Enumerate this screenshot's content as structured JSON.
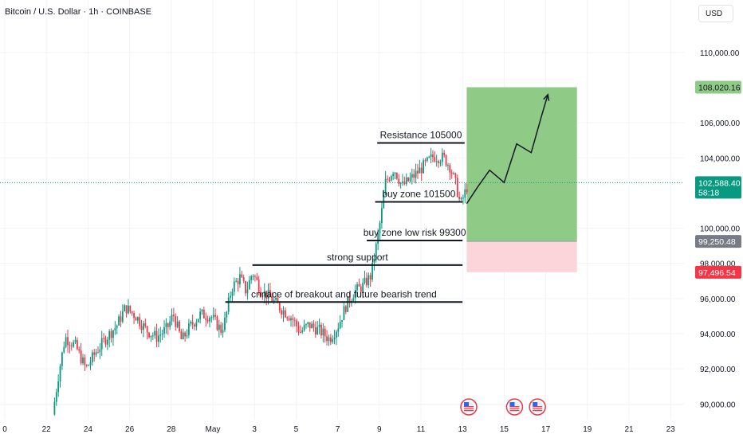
{
  "header": {
    "title": "Bitcoin / U.S. Dollar · 1h · COINBASE",
    "currency_button": "USD"
  },
  "colors": {
    "up": "#089981",
    "down": "#f23645",
    "target_zone": "#8fcb86",
    "stop_zone": "#fbd5d9",
    "grid": "#f0f3fa",
    "axis_text": "#131722"
  },
  "icons": [
    "us-flag-event-icon",
    "us-flag-event-icon",
    "us-flag-event-icon"
  ],
  "chart_data": {
    "type": "candlestick",
    "title": "Bitcoin / U.S. Dollar · 1h · COINBASE",
    "ylim": [
      89200,
      112800
    ],
    "y_ticks": [
      90000,
      92000,
      94000,
      96000,
      98000,
      100000,
      104000,
      106000,
      110000
    ],
    "y_tick_labels": [
      "90,000.00",
      "92,000.00",
      "94,000.00",
      "96,000.00",
      "98,000.00",
      "100,000.00",
      "104,000.00",
      "106,000.00",
      "110,000.00"
    ],
    "x_ticks": [
      {
        "day": 20,
        "label": "0"
      },
      {
        "day": 22,
        "label": "22"
      },
      {
        "day": 24,
        "label": "24"
      },
      {
        "day": 26,
        "label": "26"
      },
      {
        "day": 28,
        "label": "28"
      },
      {
        "day": 30,
        "label": "May"
      },
      {
        "day": 32,
        "label": "3"
      },
      {
        "day": 34,
        "label": "5"
      },
      {
        "day": 36,
        "label": "7"
      },
      {
        "day": 38,
        "label": "9"
      },
      {
        "day": 40,
        "label": "11"
      },
      {
        "day": 42,
        "label": "13"
      },
      {
        "day": 44,
        "label": "15"
      },
      {
        "day": 46,
        "label": "17"
      },
      {
        "day": 48,
        "label": "19"
      },
      {
        "day": 50,
        "label": "21"
      },
      {
        "day": 52,
        "label": "23"
      }
    ],
    "price_path": [
      [
        22.3,
        89400
      ],
      [
        22.6,
        91800
      ],
      [
        22.9,
        93800
      ],
      [
        23.4,
        93300
      ],
      [
        23.9,
        92000
      ],
      [
        24.4,
        93000
      ],
      [
        24.9,
        93800
      ],
      [
        25.4,
        94500
      ],
      [
        25.8,
        95500
      ],
      [
        26.3,
        95000
      ],
      [
        26.8,
        94200
      ],
      [
        27.3,
        93800
      ],
      [
        27.8,
        94300
      ],
      [
        28.1,
        95100
      ],
      [
        28.5,
        93600
      ],
      [
        28.9,
        94400
      ],
      [
        29.4,
        95100
      ],
      [
        29.9,
        95000
      ],
      [
        30.4,
        94200
      ],
      [
        30.6,
        94800
      ],
      [
        30.9,
        96600
      ],
      [
        31.3,
        97200
      ],
      [
        31.6,
        96400
      ],
      [
        31.9,
        97500
      ],
      [
        32.3,
        96500
      ],
      [
        32.8,
        96000
      ],
      [
        33.3,
        95400
      ],
      [
        33.8,
        94900
      ],
      [
        34.2,
        94100
      ],
      [
        34.6,
        94500
      ],
      [
        35.1,
        94200
      ],
      [
        35.6,
        93700
      ],
      [
        36.0,
        94400
      ],
      [
        36.4,
        95600
      ],
      [
        36.8,
        96400
      ],
      [
        37.2,
        96700
      ],
      [
        37.6,
        97300
      ],
      [
        37.9,
        99300
      ],
      [
        38.1,
        100800
      ],
      [
        38.3,
        102600
      ],
      [
        38.7,
        103400
      ],
      [
        39.1,
        102400
      ],
      [
        39.6,
        102900
      ],
      [
        40.1,
        103500
      ],
      [
        40.6,
        104100
      ],
      [
        41.1,
        104000
      ],
      [
        41.4,
        103500
      ],
      [
        41.7,
        102400
      ],
      [
        41.9,
        101300
      ],
      [
        42.2,
        102300
      ],
      [
        42.3,
        102588
      ]
    ],
    "annotations": [
      {
        "text": "Resistance 105000",
        "y": 104850,
        "x_start": 37.9,
        "x_end": 42.1
      },
      {
        "text": "buy zone 101500",
        "y": 101500,
        "x_start": 37.8,
        "x_end": 42.0
      },
      {
        "text": "buy zone low risk 99300",
        "y": 99300,
        "x_start": 37.4,
        "x_end": 42.0
      },
      {
        "text": "strong support",
        "y": 97900,
        "x_start": 31.9,
        "x_end": 42.0
      },
      {
        "text": "cnnace of breakout and future bearish trend",
        "y": 95800,
        "x_start": 30.6,
        "x_end": 42.0
      }
    ],
    "projection_path": [
      [
        42.2,
        101400
      ],
      [
        42.7,
        102300
      ],
      [
        43.3,
        103300
      ],
      [
        44.0,
        102600
      ],
      [
        44.6,
        104800
      ],
      [
        45.3,
        104300
      ],
      [
        45.8,
        106400
      ],
      [
        46.1,
        107600
      ]
    ],
    "position": {
      "x_start": 42.2,
      "x_end": 47.5,
      "target": 108020.16,
      "entry": 99250.48,
      "stop": 97496.54
    },
    "price_labels": [
      {
        "value": 108020.16,
        "text": "108,020.16",
        "kind": "target"
      },
      {
        "value": 102588.4,
        "text": "102,588.40",
        "kind": "last",
        "sub": "58:18"
      },
      {
        "value": 99250.48,
        "text": "99,250.48",
        "kind": "entry"
      },
      {
        "value": 97496.54,
        "text": "97,496.54",
        "kind": "stop"
      }
    ],
    "events": [
      {
        "day": 42.3
      },
      {
        "day": 44.5
      },
      {
        "day": 45.6
      }
    ]
  }
}
